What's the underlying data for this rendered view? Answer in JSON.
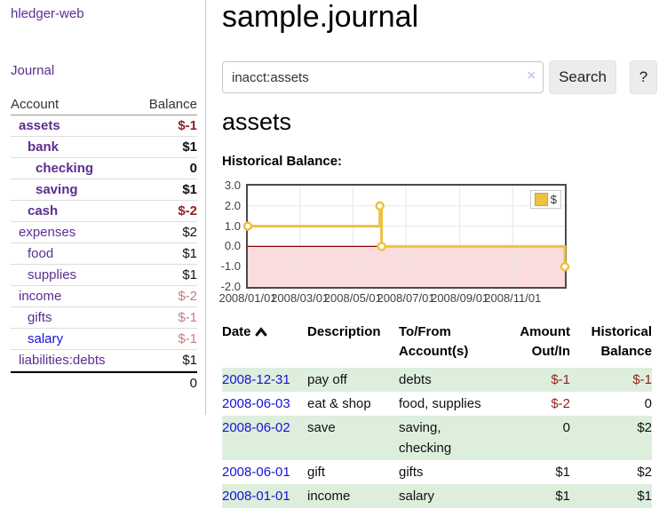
{
  "app_title": "hledger-web",
  "sidebar": {
    "journal_label": "Journal",
    "accounts": {
      "header_account": "Account",
      "header_balance": "Balance",
      "rows": [
        {
          "name": "assets",
          "balance": "$-1"
        },
        {
          "name": "bank",
          "balance": "$1"
        },
        {
          "name": "checking",
          "balance": "0"
        },
        {
          "name": "saving",
          "balance": "$1"
        },
        {
          "name": "cash",
          "balance": "$-2"
        },
        {
          "name": "expenses",
          "balance": "$2"
        },
        {
          "name": "food",
          "balance": "$1"
        },
        {
          "name": "supplies",
          "balance": "$1"
        },
        {
          "name": "income",
          "balance": "$-2"
        },
        {
          "name": "gifts",
          "balance": "$-1"
        },
        {
          "name": "salary",
          "balance": "$-1"
        },
        {
          "name": "liabilities:debts",
          "balance": "$1"
        }
      ],
      "total": "0"
    }
  },
  "main": {
    "title": "sample.journal",
    "search": {
      "value": "inacct:assets",
      "clear": "×",
      "button_label": "Search",
      "help_label": "?"
    },
    "account_heading": "assets",
    "chart_title": "Historical Balance:"
  },
  "chart_data": {
    "type": "line",
    "title": "Historical Balance",
    "step": true,
    "legend": [
      {
        "label": "$",
        "color": "#edc240"
      }
    ],
    "line_color": "#edc240",
    "negative_fill": "#fbdcdc",
    "zero_line_color": "#8b0000",
    "grid_color": "#e7e7e7",
    "xlim": [
      "2008-01-01",
      "2008-12-31"
    ],
    "ylim": [
      -2,
      3
    ],
    "yticks": [
      "3.0",
      "2.0",
      "1.0",
      "0.0",
      "-1.0",
      "-2.0"
    ],
    "xticks": [
      "2008/01/01",
      "2008/03/01",
      "2008/05/01",
      "2008/07/01",
      "2008/09/01",
      "2008/11/01"
    ],
    "points": [
      [
        "2008-01-01",
        1
      ],
      [
        "2008-06-01",
        2
      ],
      [
        "2008-06-03",
        0
      ],
      [
        "2008-12-31",
        -1
      ]
    ]
  },
  "register": {
    "headers": {
      "date": "Date",
      "description": "Description",
      "tofrom": "To/From Account(s)",
      "amount": "Amount Out/In",
      "balance": "Historical Balance"
    },
    "rows": [
      {
        "date": "2008-12-31",
        "description": "pay off",
        "accounts": "debts",
        "amount": "$-1",
        "balance": "$-1"
      },
      {
        "date": "2008-06-03",
        "description": "eat & shop",
        "accounts": "food, supplies",
        "amount": "$-2",
        "balance": "0"
      },
      {
        "date": "2008-06-02",
        "description": "save",
        "accounts": "saving, checking",
        "amount": "0",
        "balance": "$2"
      },
      {
        "date": "2008-06-01",
        "description": "gift",
        "accounts": "gifts",
        "amount": "$1",
        "balance": "$2"
      },
      {
        "date": "2008-01-01",
        "description": "income",
        "accounts": "salary",
        "amount": "$1",
        "balance": "$1"
      }
    ]
  }
}
